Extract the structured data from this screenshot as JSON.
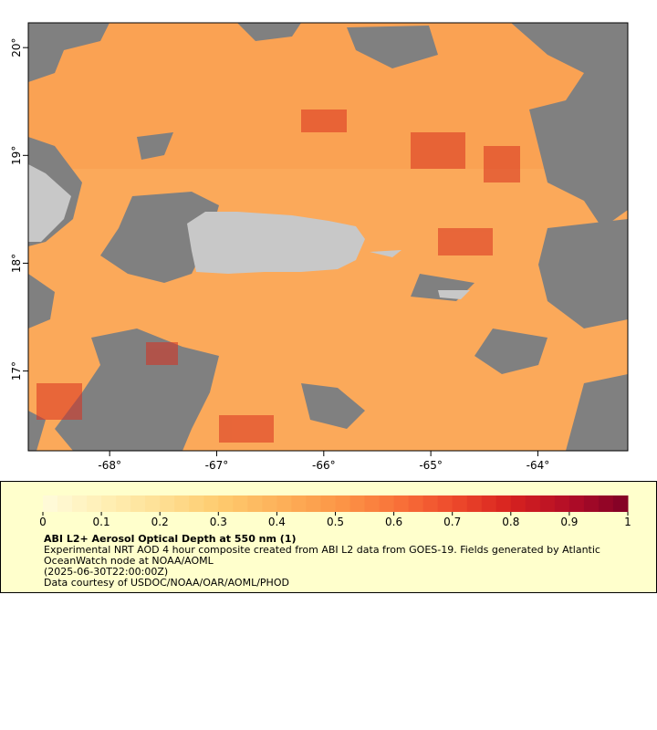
{
  "map": {
    "xlim": [
      -68.76,
      -63.16
    ],
    "ylim": [
      16.26,
      20.23
    ],
    "xticks": [
      {
        "value": -68,
        "label": "-68°"
      },
      {
        "value": -67,
        "label": "-67°"
      },
      {
        "value": -66,
        "label": "-66°"
      },
      {
        "value": -65,
        "label": "-65°"
      },
      {
        "value": -64,
        "label": "-64°"
      }
    ],
    "yticks": [
      {
        "value": 17,
        "label": "17°"
      },
      {
        "value": 18,
        "label": "18°"
      },
      {
        "value": 19,
        "label": "19°"
      },
      {
        "value": 20,
        "label": "20°"
      }
    ]
  },
  "colorbar": {
    "lim": [
      0,
      1
    ],
    "ticks": [
      0,
      0.1,
      0.2,
      0.3,
      0.4,
      0.5,
      0.6,
      0.7,
      0.8,
      0.9,
      1
    ],
    "colors": [
      "#fffbdc",
      "#fff0b6",
      "#fee095",
      "#fecb6f",
      "#fdb25a",
      "#fc9848",
      "#f9743a",
      "#ee4b2c",
      "#d7221f",
      "#b20d27",
      "#800026"
    ]
  },
  "legend": {
    "title": "ABI L2+ Aerosol Optical Depth at 550 nm (1)",
    "lines": [
      "Experimental NRT AOD 4 hour composite created from ABI L2 data from GOES-19. Fields generated by Atlantic",
      "OceanWatch node at NOAA/AOML",
      "(2025-06-30T22:00:00Z)",
      "Data courtesy of USDOC/NOAA/OAR/AOML/PHOD"
    ]
  }
}
